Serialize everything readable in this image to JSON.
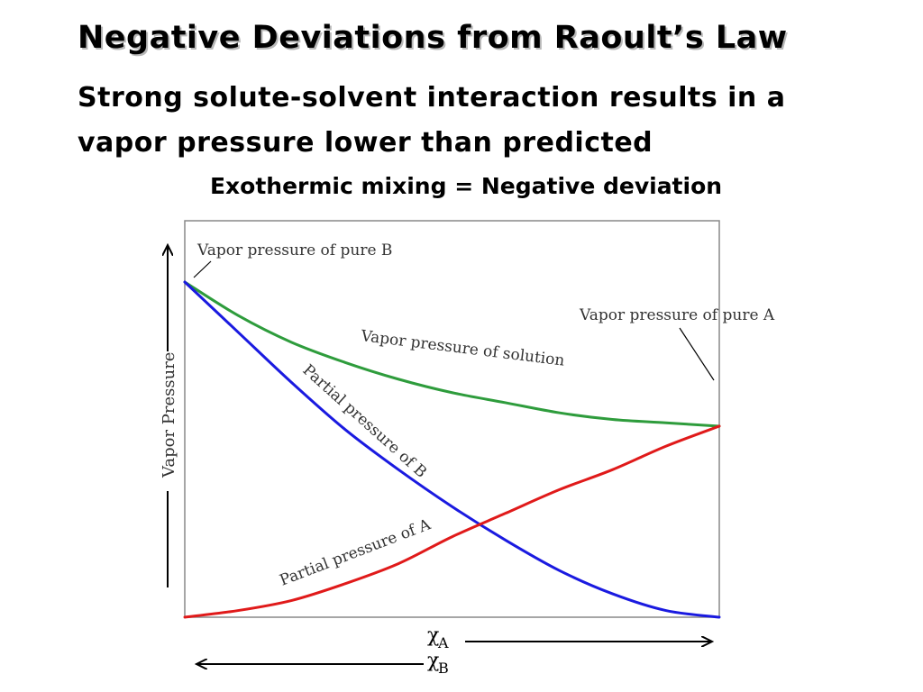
{
  "slide": {
    "title": "Negative Deviations from Raoult’s Law",
    "subtitle": "Strong solute-solvent interaction results in a vapor pressure lower than predicted",
    "caption": "Exothermic mixing = Negative deviation"
  },
  "chart_data": {
    "type": "line",
    "title": "",
    "xlabel": "χA",
    "xlabel_reverse": "χB",
    "ylabel": "Vapor Pressure",
    "xlim": [
      0,
      1
    ],
    "ylim": [
      0,
      1
    ],
    "grid": false,
    "x": [
      0,
      0.1,
      0.2,
      0.3,
      0.4,
      0.5,
      0.6,
      0.7,
      0.8,
      0.9,
      1.0
    ],
    "series": [
      {
        "name": "Vapor pressure of solution",
        "color": "#2e9c3c",
        "values": [
          1.0,
          0.9,
          0.82,
          0.76,
          0.71,
          0.67,
          0.64,
          0.61,
          0.59,
          0.58,
          0.57
        ]
      },
      {
        "name": "Partial pressure of B",
        "color": "#1a1ae0",
        "values": [
          1.0,
          0.85,
          0.7,
          0.56,
          0.44,
          0.33,
          0.23,
          0.14,
          0.07,
          0.02,
          0.0
        ]
      },
      {
        "name": "Partial pressure of A",
        "color": "#e01a1a",
        "values": [
          0.0,
          0.02,
          0.05,
          0.1,
          0.16,
          0.24,
          0.31,
          0.38,
          0.44,
          0.51,
          0.57
        ]
      }
    ],
    "annotations": [
      {
        "text": "Vapor pressure of pure B"
      },
      {
        "text": "Vapor pressure of pure A"
      }
    ]
  }
}
